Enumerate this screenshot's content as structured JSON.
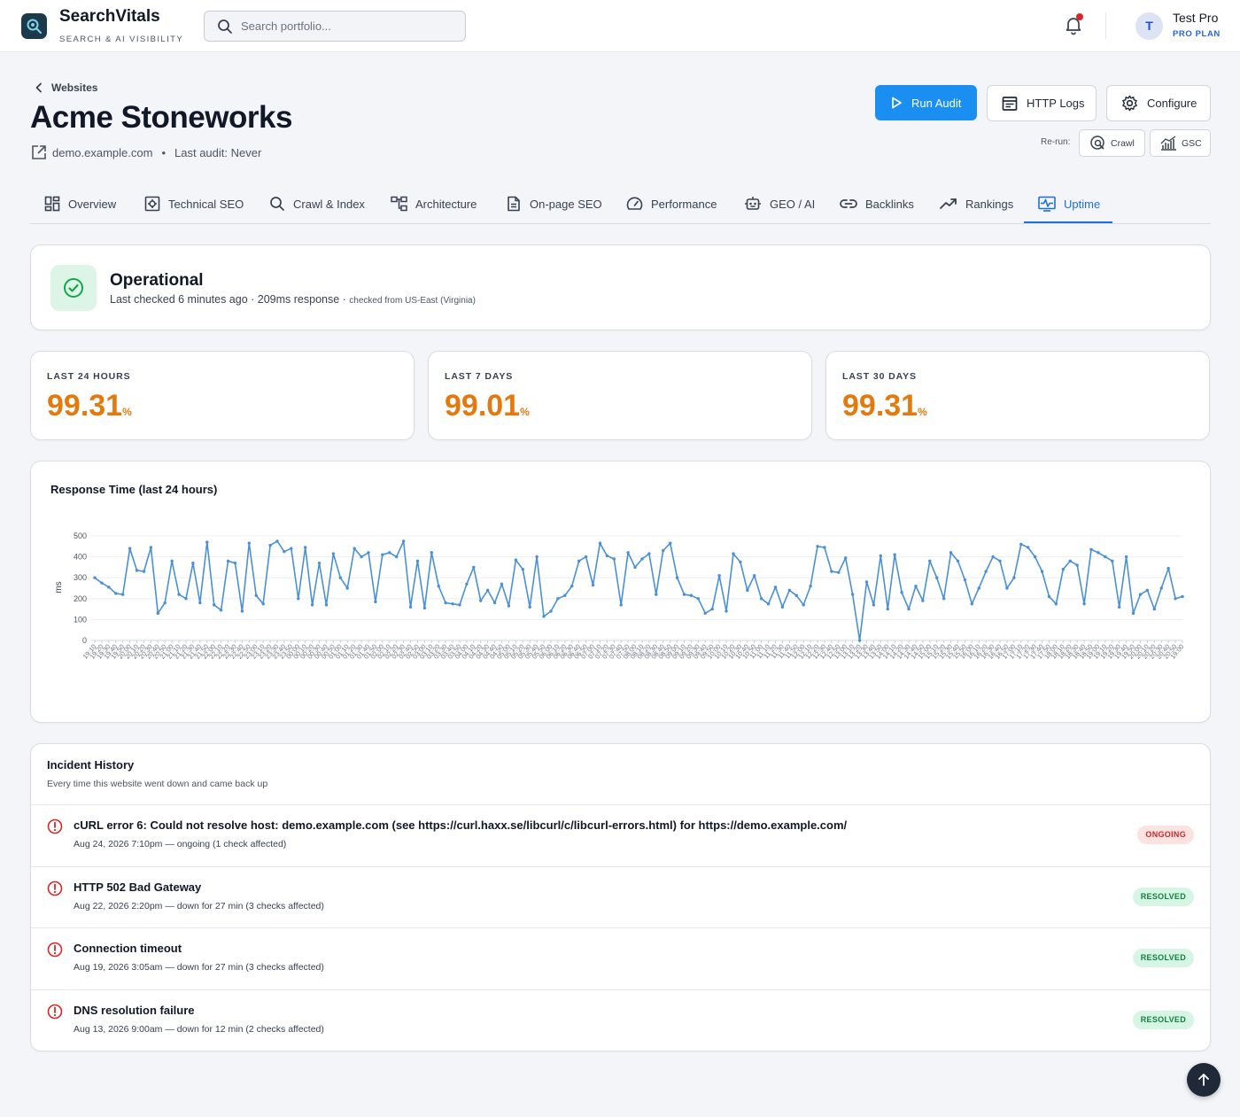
{
  "brand": {
    "name": "SearchVitals",
    "tagline": "SEARCH & AI VISIBILITY"
  },
  "search": {
    "placeholder": "Search portfolio..."
  },
  "user": {
    "initial": "T",
    "name": "Test Pro",
    "plan": "PRO PLAN"
  },
  "breadcrumb": {
    "back_label": "Websites"
  },
  "site": {
    "title": "Acme Stoneworks",
    "domain": "demo.example.com",
    "last_audit": "Last audit: Never"
  },
  "actions": {
    "run_audit": "Run Audit",
    "http_logs": "HTTP Logs",
    "configure": "Configure",
    "rerun_label": "Re-run:",
    "crawl": "Crawl",
    "gsc": "GSC"
  },
  "tabs": [
    {
      "label": "Overview",
      "icon": "grid-icon"
    },
    {
      "label": "Technical SEO",
      "icon": "cpu-icon"
    },
    {
      "label": "Crawl & Index",
      "icon": "search-icon"
    },
    {
      "label": "Architecture",
      "icon": "sitemap-icon"
    },
    {
      "label": "On-page SEO",
      "icon": "document-icon"
    },
    {
      "label": "Performance",
      "icon": "gauge-icon"
    },
    {
      "label": "GEO / AI",
      "icon": "robot-icon"
    },
    {
      "label": "Backlinks",
      "icon": "link-icon"
    },
    {
      "label": "Rankings",
      "icon": "trend-up-icon"
    },
    {
      "label": "Uptime",
      "icon": "uptime-icon",
      "active": true
    }
  ],
  "status": {
    "title": "Operational",
    "subtitle": "Last checked 6 minutes ago · 209ms response · ",
    "location": "checked from US-East (Virginia)"
  },
  "stats": [
    {
      "label": "LAST 24 HOURS",
      "value": "99.31",
      "unit": "%"
    },
    {
      "label": "LAST 7 DAYS",
      "value": "99.01",
      "unit": "%"
    },
    {
      "label": "LAST 30 DAYS",
      "value": "99.31",
      "unit": "%"
    }
  ],
  "colors": {
    "accent": "#1b8ef2",
    "uptime_value": "#e47a0e",
    "line": "#4a90d9"
  },
  "chart_data": {
    "type": "line",
    "title": "Response Time (last 24 hours)",
    "ylabel": "ms",
    "xlabel": "",
    "ylim": [
      0,
      500
    ],
    "yticks": [
      0,
      100,
      200,
      300,
      400,
      500
    ],
    "grid": true,
    "x_start": "19:10",
    "x_end": "19:00",
    "series": [
      {
        "values": [
          300,
          275,
          255,
          225,
          220,
          440,
          335,
          330,
          445,
          130,
          180,
          380,
          220,
          200,
          370,
          180,
          470,
          170,
          145,
          380,
          370,
          140,
          465,
          215,
          175,
          455,
          475,
          425,
          440,
          200,
          445,
          170,
          370,
          170,
          415,
          300,
          250,
          440,
          400,
          420,
          185,
          410,
          420,
          400,
          475,
          160,
          380,
          155,
          420,
          260,
          180,
          175,
          170,
          270,
          350,
          190,
          240,
          180,
          270,
          165,
          385,
          340,
          160,
          400,
          115,
          140,
          200,
          215,
          260,
          380,
          400,
          265,
          465,
          405,
          390,
          170,
          420,
          350,
          390,
          415,
          220,
          430,
          465,
          300,
          220,
          215,
          200,
          130,
          150,
          310,
          140,
          415,
          375,
          240,
          310,
          200,
          175,
          255,
          160,
          240,
          215,
          170,
          260,
          450,
          445,
          330,
          325,
          395,
          220,
          0,
          280,
          170,
          405,
          150,
          410,
          230,
          150,
          260,
          190,
          380,
          300,
          200,
          420,
          380,
          290,
          175,
          250,
          330,
          400,
          380,
          250,
          300,
          460,
          445,
          400,
          330,
          210,
          175,
          340,
          380,
          360,
          175,
          435,
          420,
          400,
          380,
          160,
          400,
          130,
          220,
          240,
          150,
          250,
          345,
          200,
          210
        ]
      }
    ]
  },
  "incidents": {
    "title": "Incident History",
    "subtitle": "Every time this website went down and came back up",
    "items": [
      {
        "title": "cURL error 6: Could not resolve host: demo.example.com (see https://curl.haxx.se/libcurl/c/libcurl-errors.html) for https://demo.example.com/",
        "detail": "Aug 24, 2026 7:10pm — ongoing (1 check affected)",
        "status": "ONGOING"
      },
      {
        "title": "HTTP 502 Bad Gateway",
        "detail": "Aug 22, 2026 2:20pm — down for 27 min (3 checks affected)",
        "status": "RESOLVED"
      },
      {
        "title": "Connection timeout",
        "detail": "Aug 19, 2026 3:05am — down for 27 min (3 checks affected)",
        "status": "RESOLVED"
      },
      {
        "title": "DNS resolution failure",
        "detail": "Aug 13, 2026 9:00am — down for 12 min (2 checks affected)",
        "status": "RESOLVED"
      }
    ]
  }
}
